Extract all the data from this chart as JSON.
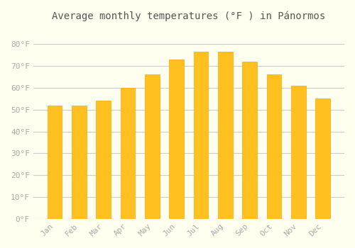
{
  "title": "Average monthly temperatures (°F ) in Pánormos",
  "months": [
    "Jan",
    "Feb",
    "Mar",
    "Apr",
    "May",
    "Jun",
    "Jul",
    "Aug",
    "Sep",
    "Oct",
    "Nov",
    "Dec"
  ],
  "values": [
    52,
    52,
    54,
    60,
    66,
    73,
    76.5,
    76.5,
    72,
    66,
    61,
    55
  ],
  "bar_color_face": "#FFC020",
  "bar_color_edge": "#FFA500",
  "background_color": "#FFFFF0",
  "grid_color": "#CCCCCC",
  "tick_label_color": "#AAAAAA",
  "title_color": "#555555",
  "ylim": [
    0,
    88
  ],
  "yticks": [
    0,
    10,
    20,
    30,
    40,
    50,
    60,
    70,
    80
  ],
  "ytick_labels": [
    "0°F",
    "10°F",
    "20°F",
    "30°F",
    "40°F",
    "50°F",
    "60°F",
    "70°F",
    "80°F"
  ],
  "title_fontsize": 10,
  "tick_fontsize": 8,
  "bar_width": 0.6
}
